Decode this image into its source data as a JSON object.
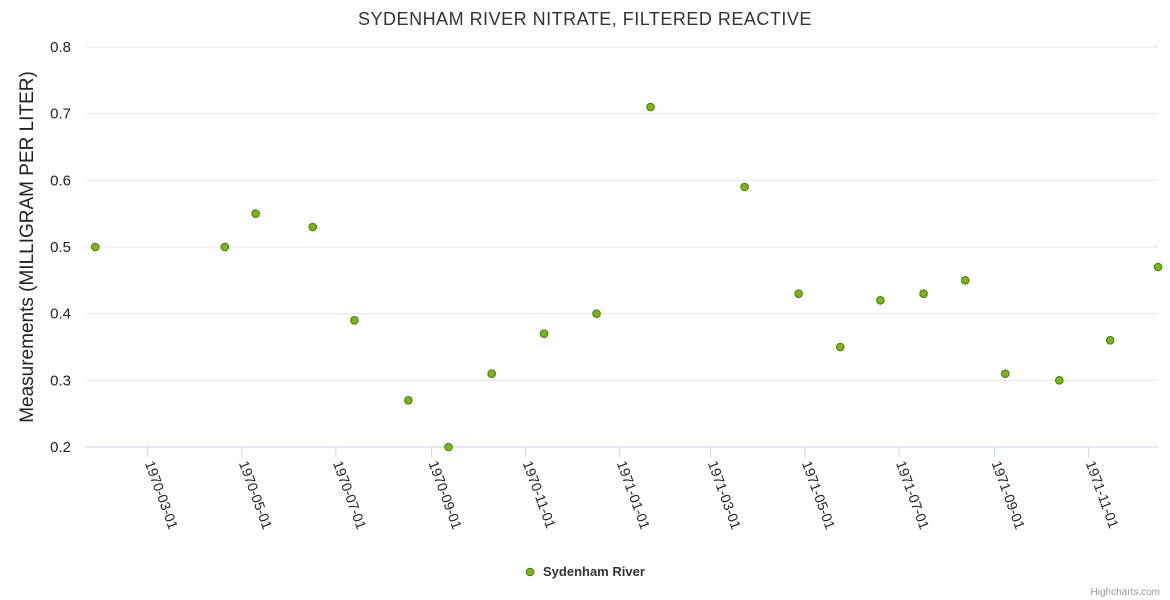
{
  "chart_data": {
    "type": "scatter",
    "title": "SYDENHAM RIVER NITRATE, FILTERED REACTIVE",
    "xlabel": "",
    "ylabel": "Measurements (MILLIGRAM PER LITER)",
    "ylim": [
      0.2,
      0.8
    ],
    "yticks": [
      "0.2",
      "0.3",
      "0.4",
      "0.5",
      "0.6",
      "0.7",
      "0.8"
    ],
    "xlim": [
      "1970-01-20",
      "1971-12-16"
    ],
    "xticks": [
      "1970-03-01",
      "1970-05-01",
      "1970-07-01",
      "1970-09-01",
      "1970-11-01",
      "1971-01-01",
      "1971-03-01",
      "1971-05-01",
      "1971-07-01",
      "1971-09-01",
      "1971-11-01"
    ],
    "grid": true,
    "legend_position": "bottom-center",
    "series": [
      {
        "name": "Sydenham River",
        "color": "#7cb518",
        "edge_color": "#3f7d0e",
        "x": [
          "1970-01-26",
          "1970-04-20",
          "1970-05-10",
          "1970-06-16",
          "1970-07-13",
          "1970-08-17",
          "1970-09-12",
          "1970-10-10",
          "1970-11-13",
          "1970-12-17",
          "1971-01-21",
          "1971-03-23",
          "1971-04-27",
          "1971-05-24",
          "1971-06-19",
          "1971-07-17",
          "1971-08-13",
          "1971-09-08",
          "1971-10-13",
          "1971-11-15",
          "1971-12-16"
        ],
        "y": [
          0.5,
          0.5,
          0.55,
          0.53,
          0.39,
          0.27,
          0.2,
          0.31,
          0.37,
          0.4,
          0.71,
          0.59,
          0.43,
          0.35,
          0.42,
          0.43,
          0.45,
          0.31,
          0.3,
          0.36,
          0.47
        ]
      }
    ]
  },
  "credit": "Highcharts.com"
}
